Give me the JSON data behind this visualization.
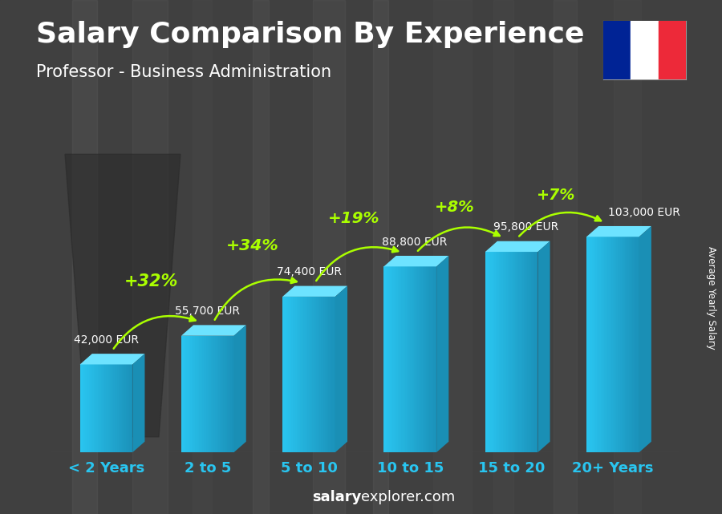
{
  "title": "Salary Comparison By Experience",
  "subtitle": "Professor - Business Administration",
  "categories": [
    "< 2 Years",
    "2 to 5",
    "5 to 10",
    "10 to 15",
    "15 to 20",
    "20+ Years"
  ],
  "values": [
    42000,
    55700,
    74400,
    88800,
    95800,
    103000
  ],
  "salary_labels": [
    "42,000 EUR",
    "55,700 EUR",
    "74,400 EUR",
    "88,800 EUR",
    "95,800 EUR",
    "103,000 EUR"
  ],
  "pct_changes": [
    "+32%",
    "+34%",
    "+19%",
    "+8%",
    "+7%"
  ],
  "bar_color_front": "#29c5f0",
  "bar_color_top": "#6de3ff",
  "bar_color_side": "#1a8fb5",
  "bar_color_grad_dark": "#1490b8",
  "background_color": "#3a3a3a",
  "overlay_color": "#2a2a2a",
  "text_color_white": "#ffffff",
  "text_color_cyan": "#29c5f0",
  "text_color_green": "#aaff00",
  "ylabel": "Average Yearly Salary",
  "footer_bold": "salary",
  "footer_normal": "explorer.com",
  "flag_blue": "#002395",
  "flag_white": "#ffffff",
  "flag_red": "#ED2939",
  "title_fontsize": 26,
  "subtitle_fontsize": 15,
  "tick_fontsize": 13,
  "salary_fontsize": 10,
  "pct_fontsize": 15,
  "footer_fontsize": 13
}
